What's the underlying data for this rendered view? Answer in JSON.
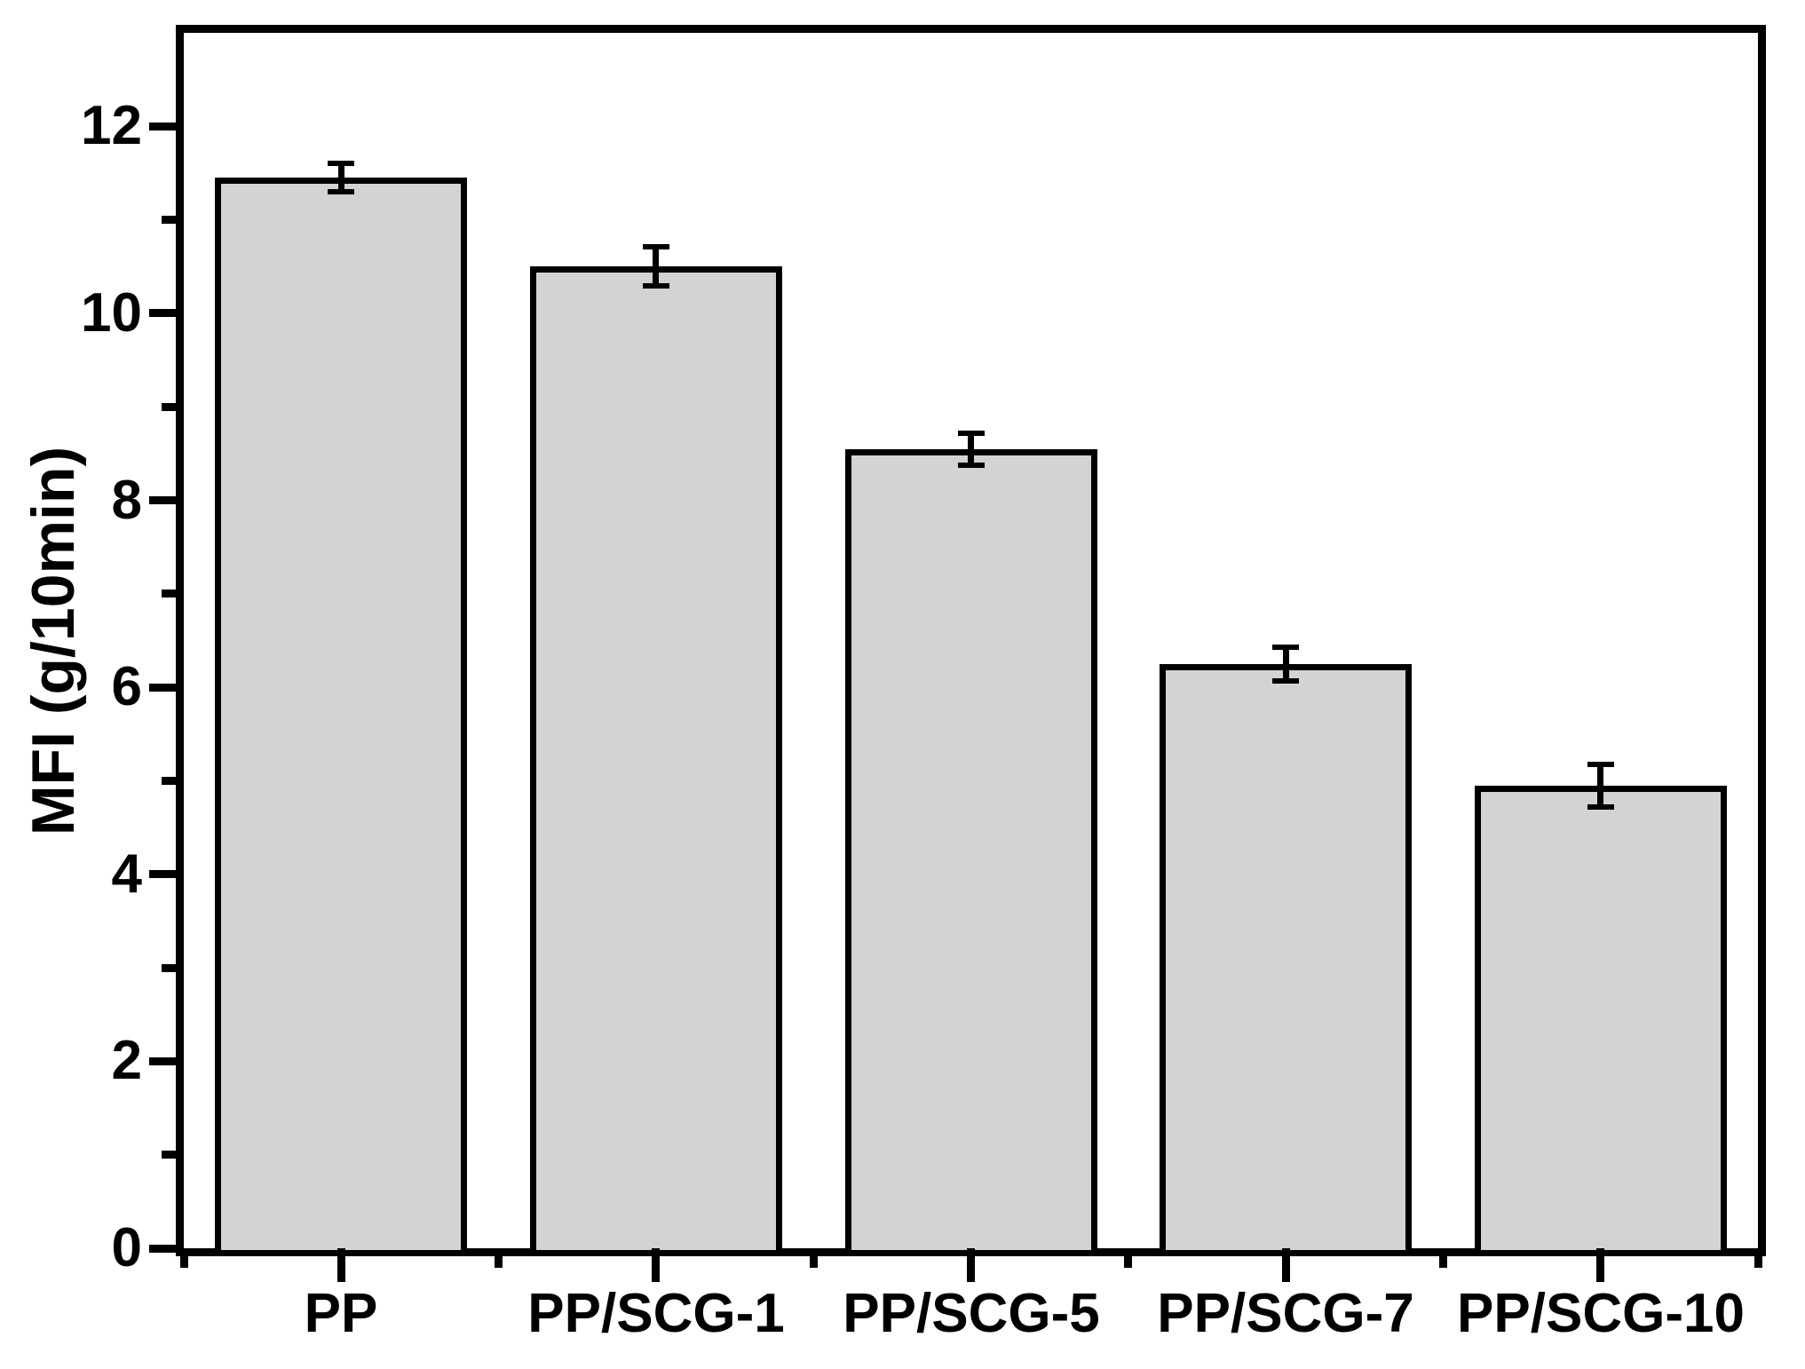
{
  "chart_data": {
    "type": "bar",
    "title": "",
    "categories": [
      "PP",
      "PP/SCG-1",
      "PP/SCG-5",
      "PP/SCG-7",
      "PP/SCG-10"
    ],
    "values": [
      11.45,
      10.5,
      8.55,
      6.25,
      4.95
    ],
    "error_bars": [
      0.15,
      0.21,
      0.17,
      0.18,
      0.23
    ],
    "xlabel": "",
    "ylabel": "MFI (g/10min)",
    "ylim": [
      0,
      13
    ],
    "y_major_ticks": [
      0,
      2,
      4,
      6,
      8,
      10,
      12
    ],
    "y_major_tick_labels": [
      "0",
      "2",
      "4",
      "6",
      "8",
      "10",
      "12"
    ],
    "y_minor_ticks": [
      1,
      3,
      5,
      7,
      9,
      11
    ],
    "grid": false,
    "legend": null,
    "bar_fill_color": "#d3d3d3",
    "bar_border_color": "#000000",
    "axis_color": "#000000",
    "background_color": "#ffffff"
  }
}
